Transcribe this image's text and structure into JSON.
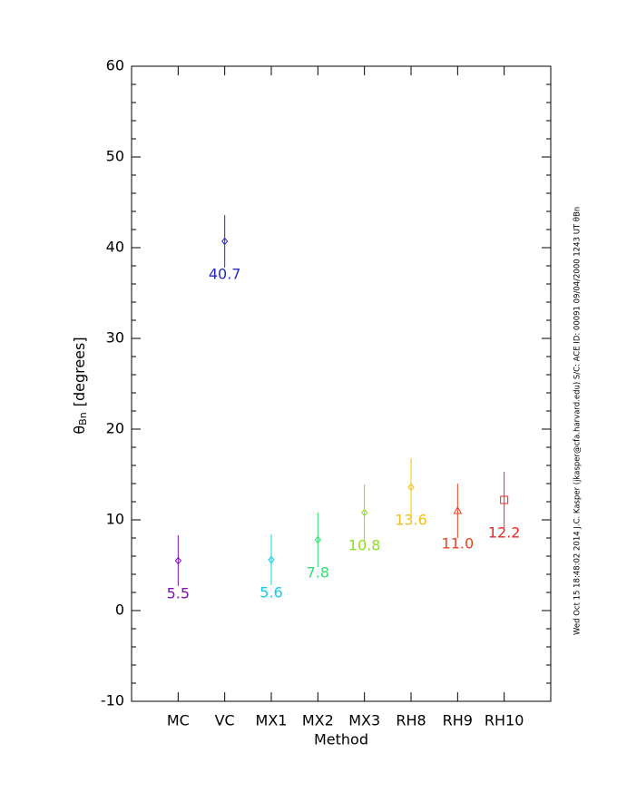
{
  "chart_data": {
    "type": "errorbar",
    "xlabel": "Method",
    "ylabel": {
      "symbol": "θ",
      "subscript": "Bn",
      "text": "[degrees]"
    },
    "stamp": "Wed Oct 15 18:48:02 2014  J.C. Kasper (jkasper@cfa.harvard.edu)  S/C: ACE ID: 00091 09/04/2000  1243 UT θBn",
    "categories": [
      "MC",
      "VC",
      "MX1",
      "MX2",
      "MX3",
      "RH8",
      "RH9",
      "RH10"
    ],
    "values": [
      5.5,
      40.7,
      5.6,
      7.8,
      10.8,
      13.6,
      11.0,
      12.2
    ],
    "value_labels": [
      "5.5",
      "40.7",
      "5.6",
      "7.8",
      "10.8",
      "13.6",
      "11.0",
      "12.2"
    ],
    "errors": [
      2.8,
      2.9,
      2.8,
      3.0,
      3.1,
      3.2,
      3.0,
      3.1
    ],
    "colors": [
      "#8010b0",
      "#2828c8",
      "#10d0e8",
      "#30e070",
      "#88e020",
      "#f0c010",
      "#f04020",
      "#e82828"
    ],
    "markers": [
      "diamond",
      "diamond",
      "diamond",
      "diamond",
      "diamond",
      "diamond",
      "triangle",
      "square"
    ],
    "ylim": [
      -10,
      60
    ],
    "yticks": [
      -10,
      0,
      10,
      20,
      30,
      40,
      50,
      60
    ],
    "y_minor_per_major": 5
  }
}
